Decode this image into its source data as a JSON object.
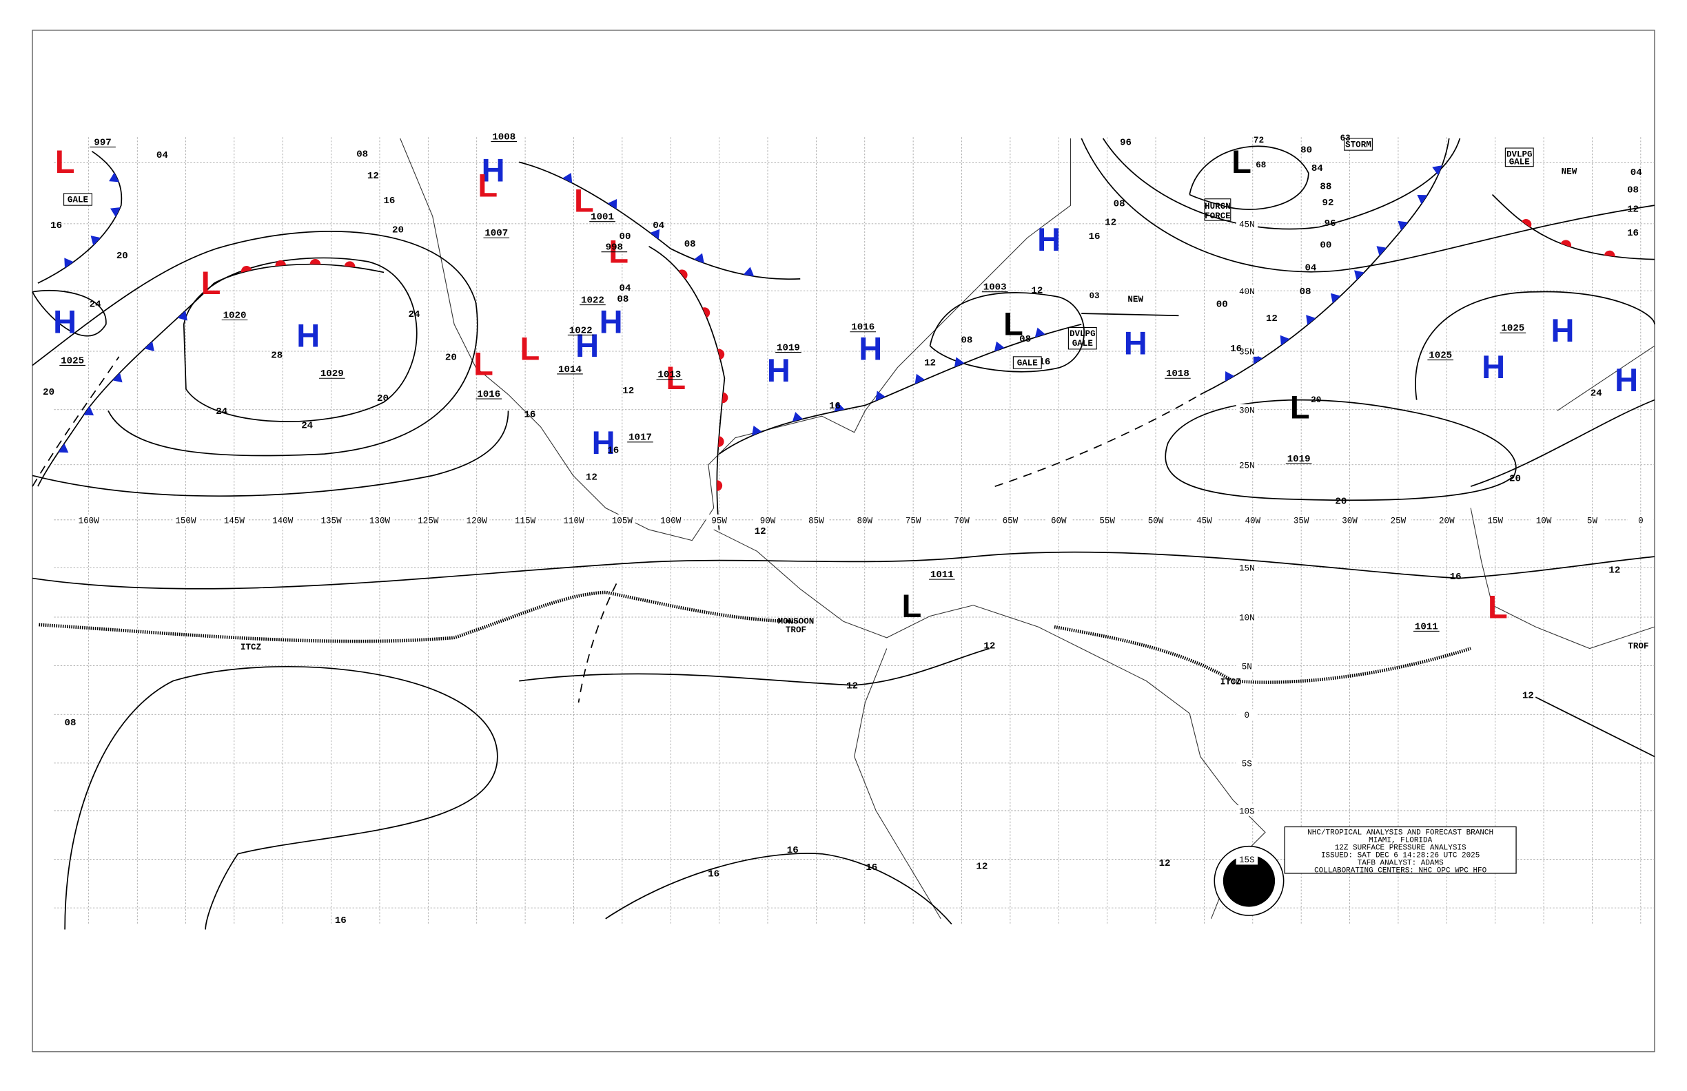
{
  "map": {
    "longitude_labels": [
      "160W",
      "150W",
      "145W",
      "140W",
      "135W",
      "130W",
      "125W",
      "120W",
      "115W",
      "110W",
      "105W",
      "100W",
      "95W",
      "90W",
      "85W",
      "80W",
      "75W",
      "70W",
      "65W",
      "60W",
      "55W",
      "50W",
      "45W",
      "40W",
      "35W",
      "30W",
      "25W",
      "20W",
      "15W",
      "10W",
      "5W",
      "0"
    ],
    "latitude_labels": [
      "45N",
      "40N",
      "35N",
      "30N",
      "25N",
      "15N",
      "10N",
      "5N",
      "0",
      "5S",
      "10S",
      "15S"
    ],
    "pressure_centers": [
      {
        "symbol": "L",
        "color": "#e3101c"
      },
      {
        "symbol": "L",
        "color": "#e3101c"
      },
      {
        "symbol": "H",
        "color": "#1428d2"
      },
      {
        "symbol": "H",
        "color": "#1428d2"
      },
      {
        "symbol": "H",
        "color": "#1428d2"
      },
      {
        "symbol": "L",
        "color": "#e3101c"
      },
      {
        "symbol": "L",
        "color": "#e3101c"
      },
      {
        "symbol": "L",
        "color": "#e3101c"
      },
      {
        "symbol": "H",
        "color": "#1428d2"
      },
      {
        "symbol": "H",
        "color": "#1428d2"
      },
      {
        "symbol": "L",
        "color": "#e3101c"
      },
      {
        "symbol": "L",
        "color": "#e3101c"
      },
      {
        "symbol": "H",
        "color": "#1428d2"
      },
      {
        "symbol": "L",
        "color": "#e3101c"
      },
      {
        "symbol": "H",
        "color": "#1428d2"
      },
      {
        "symbol": "H",
        "color": "#1428d2"
      },
      {
        "symbol": "L",
        "color": "#000000"
      },
      {
        "symbol": "H",
        "color": "#1428d2"
      },
      {
        "symbol": "H",
        "color": "#1428d2"
      },
      {
        "symbol": "L",
        "color": "#000000"
      },
      {
        "symbol": "L",
        "color": "#000000"
      },
      {
        "symbol": "H",
        "color": "#1428d2"
      },
      {
        "symbol": "H",
        "color": "#1428d2"
      },
      {
        "symbol": "H",
        "color": "#1428d2"
      },
      {
        "symbol": "L",
        "color": "#000000"
      },
      {
        "symbol": "L",
        "color": "#e3101c"
      }
    ],
    "pressure_labels": [
      "997",
      "1020",
      "1025",
      "1029",
      "1008",
      "1007",
      "1001",
      "998",
      "1022",
      "1022",
      "1014",
      "1016",
      "1017",
      "1013",
      "1019",
      "1016",
      "1003",
      "1018",
      "1019",
      "1025",
      "1025",
      "1011",
      "1011"
    ],
    "isobar_labels": [
      "04",
      "08",
      "12",
      "16",
      "20",
      "16",
      "20",
      "24",
      "20",
      "24",
      "20",
      "28",
      "24",
      "24",
      "20",
      "16",
      "12",
      "16",
      "12",
      "08",
      "04",
      "00",
      "04",
      "08",
      "12",
      "16",
      "12",
      "08",
      "08",
      "12",
      "16",
      "16",
      "12",
      "08",
      "96",
      "80",
      "84",
      "88",
      "92",
      "96",
      "00",
      "04",
      "08",
      "12",
      "16",
      "00",
      "20",
      "20",
      "12",
      "16",
      "12",
      "12",
      "12",
      "08",
      "16",
      "16",
      "16",
      "16",
      "12",
      "12",
      "24",
      "12",
      "16",
      "04",
      "08"
    ],
    "annotations": [
      "GALE",
      "GALE",
      "NEW",
      "NEW",
      "STORM",
      "63",
      "HURCN",
      "FORCE",
      "DVLPG",
      "GALE",
      "DVLPG",
      "GALE",
      "ITCZ",
      "ITCZ",
      "MONSOON",
      "TROF",
      "TROF",
      "03",
      "72",
      "68",
      "20"
    ],
    "info_box": [
      "NHC/TROPICAL ANALYSIS AND FORECAST BRANCH",
      "MIAMI, FLORIDA",
      "12Z SURFACE PRESSURE ANALYSIS",
      "ISSUED: SAT DEC 6 14:28:26 UTC 2025",
      "TAFB ANALYST: ADAMS",
      "COLLABORATING CENTERS: NHC OPC WPC HFO"
    ],
    "logo": "NOAA"
  }
}
